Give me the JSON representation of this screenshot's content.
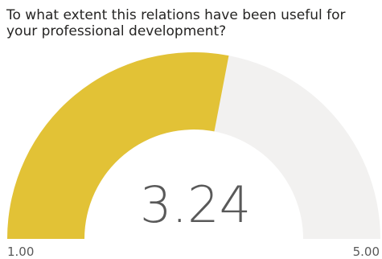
{
  "chart_data": {
    "type": "gauge",
    "title": "To what extent this relations have been useful for your professional development?",
    "value": 3.24,
    "value_label": "3.24",
    "min": 1.0,
    "max": 5.0,
    "min_label": "1.00",
    "max_label": "5.00",
    "colors": {
      "fill": "#E2C236",
      "track": "#F2F1F0",
      "text": "#595959",
      "title": "#252423"
    }
  }
}
